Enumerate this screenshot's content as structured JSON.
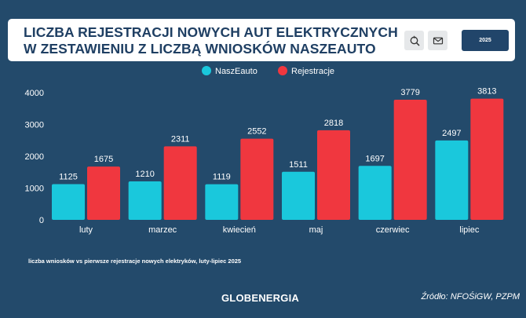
{
  "header": {
    "title_lines": [
      "LICZBA REJESTRACJI NOWYCH AUT ELEKTRYCZNYCH",
      "W ZESTAWIENIU Z LICZBĄ WNIOSKÓW NASZEAUTO"
    ],
    "year_button": "2025",
    "icons": [
      "refresh-search-icon",
      "mail-icon"
    ]
  },
  "colors": {
    "background": "#234a6b",
    "series_1": "#1ac8dc",
    "series_2": "#f0373f",
    "text": "#ffffff"
  },
  "chart_data": {
    "type": "bar",
    "categories": [
      "luty",
      "marzec",
      "kwiecień",
      "maj",
      "czerwiec",
      "lipiec"
    ],
    "series": [
      {
        "name": "NaszEauto",
        "values": [
          1125,
          1210,
          1119,
          1511,
          1697,
          2497
        ]
      },
      {
        "name": "Rejestracje",
        "values": [
          1675,
          2311,
          2552,
          2818,
          3779,
          3813
        ]
      }
    ],
    "ylim": [
      0,
      4000
    ],
    "yticks": [
      0,
      1000,
      2000,
      3000,
      4000
    ],
    "legend": "top-center",
    "grid": false,
    "data_labels": true
  },
  "footer": {
    "caption": "liczba wniosków vs pierwsze rejestracje nowych elektryków, luty-lipiec 2025",
    "brand": "GLOBENERGIA",
    "source": "Źródło: NFOŚiGW, PZPM"
  }
}
